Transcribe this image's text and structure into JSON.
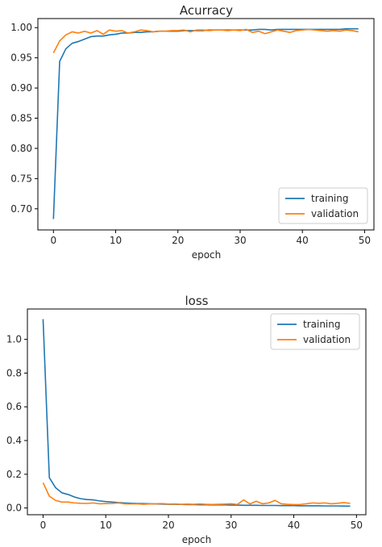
{
  "chart_data": [
    {
      "type": "line",
      "title": "Acurracy",
      "xlabel": "epoch",
      "ylabel": "",
      "xlim": [
        -2.5,
        51.5
      ],
      "ylim": [
        0.665,
        1.015
      ],
      "xticks": [
        0,
        10,
        20,
        30,
        40,
        50
      ],
      "yticks": [
        0.7,
        0.75,
        0.8,
        0.85,
        0.9,
        0.95,
        1.0
      ],
      "ytick_decimals": 2,
      "legend_position": "lower right",
      "series": [
        {
          "name": "training",
          "color": "#1f77b4",
          "x": [
            0,
            1,
            2,
            3,
            4,
            5,
            6,
            7,
            8,
            9,
            10,
            11,
            12,
            13,
            14,
            15,
            16,
            17,
            18,
            19,
            20,
            21,
            22,
            23,
            24,
            25,
            26,
            27,
            28,
            29,
            30,
            31,
            32,
            33,
            34,
            35,
            36,
            37,
            38,
            39,
            40,
            41,
            42,
            43,
            44,
            45,
            46,
            47,
            48,
            49
          ],
          "values": [
            0.683,
            0.944,
            0.965,
            0.974,
            0.977,
            0.981,
            0.985,
            0.986,
            0.986,
            0.988,
            0.989,
            0.991,
            0.991,
            0.992,
            0.992,
            0.993,
            0.993,
            0.994,
            0.994,
            0.994,
            0.994,
            0.995,
            0.995,
            0.995,
            0.995,
            0.996,
            0.996,
            0.996,
            0.996,
            0.996,
            0.996,
            0.996,
            0.996,
            0.997,
            0.997,
            0.996,
            0.997,
            0.997,
            0.997,
            0.997,
            0.997,
            0.997,
            0.997,
            0.997,
            0.997,
            0.997,
            0.997,
            0.998,
            0.998,
            0.998
          ]
        },
        {
          "name": "validation",
          "color": "#ff7f0e",
          "x": [
            0,
            1,
            2,
            3,
            4,
            5,
            6,
            7,
            8,
            9,
            10,
            11,
            12,
            13,
            14,
            15,
            16,
            17,
            18,
            19,
            20,
            21,
            22,
            23,
            24,
            25,
            26,
            27,
            28,
            29,
            30,
            31,
            32,
            33,
            34,
            35,
            36,
            37,
            38,
            39,
            40,
            41,
            42,
            43,
            44,
            45,
            46,
            47,
            48,
            49
          ],
          "values": [
            0.958,
            0.978,
            0.988,
            0.993,
            0.991,
            0.994,
            0.991,
            0.995,
            0.989,
            0.996,
            0.994,
            0.995,
            0.991,
            0.993,
            0.996,
            0.995,
            0.993,
            0.994,
            0.994,
            0.995,
            0.995,
            0.996,
            0.993,
            0.996,
            0.996,
            0.995,
            0.996,
            0.996,
            0.995,
            0.996,
            0.995,
            0.997,
            0.992,
            0.994,
            0.99,
            0.993,
            0.996,
            0.994,
            0.992,
            0.995,
            0.996,
            0.997,
            0.996,
            0.995,
            0.994,
            0.995,
            0.994,
            0.996,
            0.995,
            0.993
          ]
        }
      ]
    },
    {
      "type": "line",
      "title": "loss",
      "xlabel": "epoch",
      "ylabel": "",
      "xlim": [
        -2.5,
        51.5
      ],
      "ylim": [
        -0.04,
        1.18
      ],
      "xticks": [
        0,
        10,
        20,
        30,
        40,
        50
      ],
      "yticks": [
        0.0,
        0.2,
        0.4,
        0.6,
        0.8,
        1.0
      ],
      "ytick_decimals": 1,
      "legend_position": "upper right",
      "series": [
        {
          "name": "training",
          "color": "#1f77b4",
          "x": [
            0,
            1,
            2,
            3,
            4,
            5,
            6,
            7,
            8,
            9,
            10,
            11,
            12,
            13,
            14,
            15,
            16,
            17,
            18,
            19,
            20,
            21,
            22,
            23,
            24,
            25,
            26,
            27,
            28,
            29,
            30,
            31,
            32,
            33,
            34,
            35,
            36,
            37,
            38,
            39,
            40,
            41,
            42,
            43,
            44,
            45,
            46,
            47,
            48,
            49
          ],
          "values": [
            1.12,
            0.18,
            0.12,
            0.09,
            0.08,
            0.065,
            0.055,
            0.05,
            0.048,
            0.042,
            0.038,
            0.035,
            0.032,
            0.03,
            0.028,
            0.027,
            0.026,
            0.025,
            0.024,
            0.023,
            0.022,
            0.022,
            0.021,
            0.02,
            0.02,
            0.019,
            0.019,
            0.018,
            0.018,
            0.018,
            0.017,
            0.017,
            0.016,
            0.016,
            0.016,
            0.015,
            0.015,
            0.015,
            0.014,
            0.014,
            0.014,
            0.013,
            0.013,
            0.013,
            0.013,
            0.012,
            0.012,
            0.012,
            0.011,
            0.011
          ]
        },
        {
          "name": "validation",
          "color": "#ff7f0e",
          "x": [
            0,
            1,
            2,
            3,
            4,
            5,
            6,
            7,
            8,
            9,
            10,
            11,
            12,
            13,
            14,
            15,
            16,
            17,
            18,
            19,
            20,
            21,
            22,
            23,
            24,
            25,
            26,
            27,
            28,
            29,
            30,
            31,
            32,
            33,
            34,
            35,
            36,
            37,
            38,
            39,
            40,
            41,
            42,
            43,
            44,
            45,
            46,
            47,
            48,
            49
          ],
          "values": [
            0.15,
            0.07,
            0.045,
            0.035,
            0.035,
            0.03,
            0.028,
            0.027,
            0.03,
            0.025,
            0.026,
            0.027,
            0.03,
            0.025,
            0.024,
            0.025,
            0.022,
            0.024,
            0.025,
            0.026,
            0.023,
            0.024,
            0.022,
            0.023,
            0.022,
            0.024,
            0.022,
            0.021,
            0.022,
            0.023,
            0.025,
            0.021,
            0.048,
            0.024,
            0.04,
            0.025,
            0.03,
            0.045,
            0.025,
            0.022,
            0.02,
            0.021,
            0.025,
            0.03,
            0.028,
            0.03,
            0.025,
            0.028,
            0.032,
            0.027
          ]
        }
      ]
    }
  ]
}
